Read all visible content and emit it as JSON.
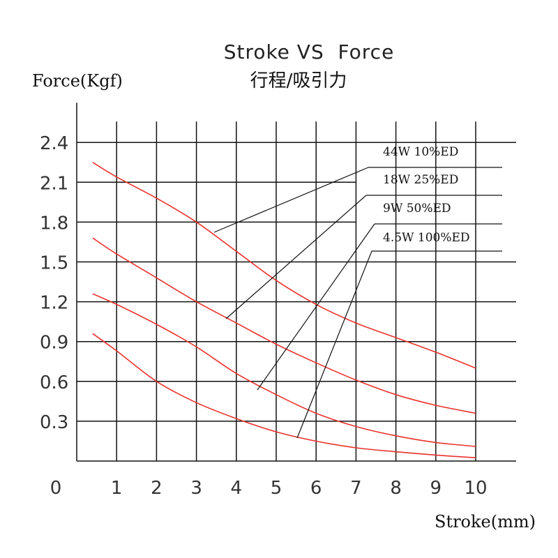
{
  "chart_data": {
    "type": "line",
    "title": "Stroke VS  Force",
    "subtitle": "行程/吸引力",
    "xlabel": "Stroke(mm)",
    "ylabel": "Force(Kgf)",
    "xlim": [
      0,
      10
    ],
    "ylim": [
      0,
      2.4
    ],
    "x_ticks": [
      "0",
      "1",
      "2",
      "3",
      "4",
      "5",
      "6",
      "7",
      "8",
      "9",
      "10"
    ],
    "y_ticks": [
      "0.3",
      "0.6",
      "0.9",
      "1.2",
      "1.5",
      "1.8",
      "2.1",
      "2.4"
    ],
    "grid": true,
    "series": [
      {
        "name": "44W  10%ED",
        "x": [
          0.4,
          1,
          2,
          3,
          4,
          5,
          6,
          7,
          8,
          9,
          10
        ],
        "y": [
          2.25,
          2.14,
          1.98,
          1.8,
          1.58,
          1.36,
          1.18,
          1.04,
          0.93,
          0.82,
          0.7
        ]
      },
      {
        "name": "18W  25%ED",
        "x": [
          0.4,
          1,
          2,
          3,
          4,
          5,
          6,
          7,
          8,
          9,
          10
        ],
        "y": [
          1.68,
          1.56,
          1.38,
          1.2,
          1.04,
          0.88,
          0.74,
          0.61,
          0.5,
          0.42,
          0.36
        ]
      },
      {
        "name": "9W   50%ED",
        "x": [
          0.4,
          1,
          2,
          3,
          4,
          5,
          6,
          7,
          8,
          9,
          10
        ],
        "y": [
          1.26,
          1.18,
          1.03,
          0.86,
          0.66,
          0.5,
          0.36,
          0.26,
          0.19,
          0.14,
          0.11
        ]
      },
      {
        "name": "4.5W  100%ED",
        "x": [
          0.4,
          1,
          2,
          3,
          4,
          5,
          6,
          7,
          8,
          9,
          10
        ],
        "y": [
          0.96,
          0.83,
          0.6,
          0.44,
          0.32,
          0.22,
          0.15,
          0.1,
          0.07,
          0.045,
          0.025
        ]
      }
    ],
    "colors": {
      "curve": "#e8322b",
      "grid": "#111111"
    }
  }
}
